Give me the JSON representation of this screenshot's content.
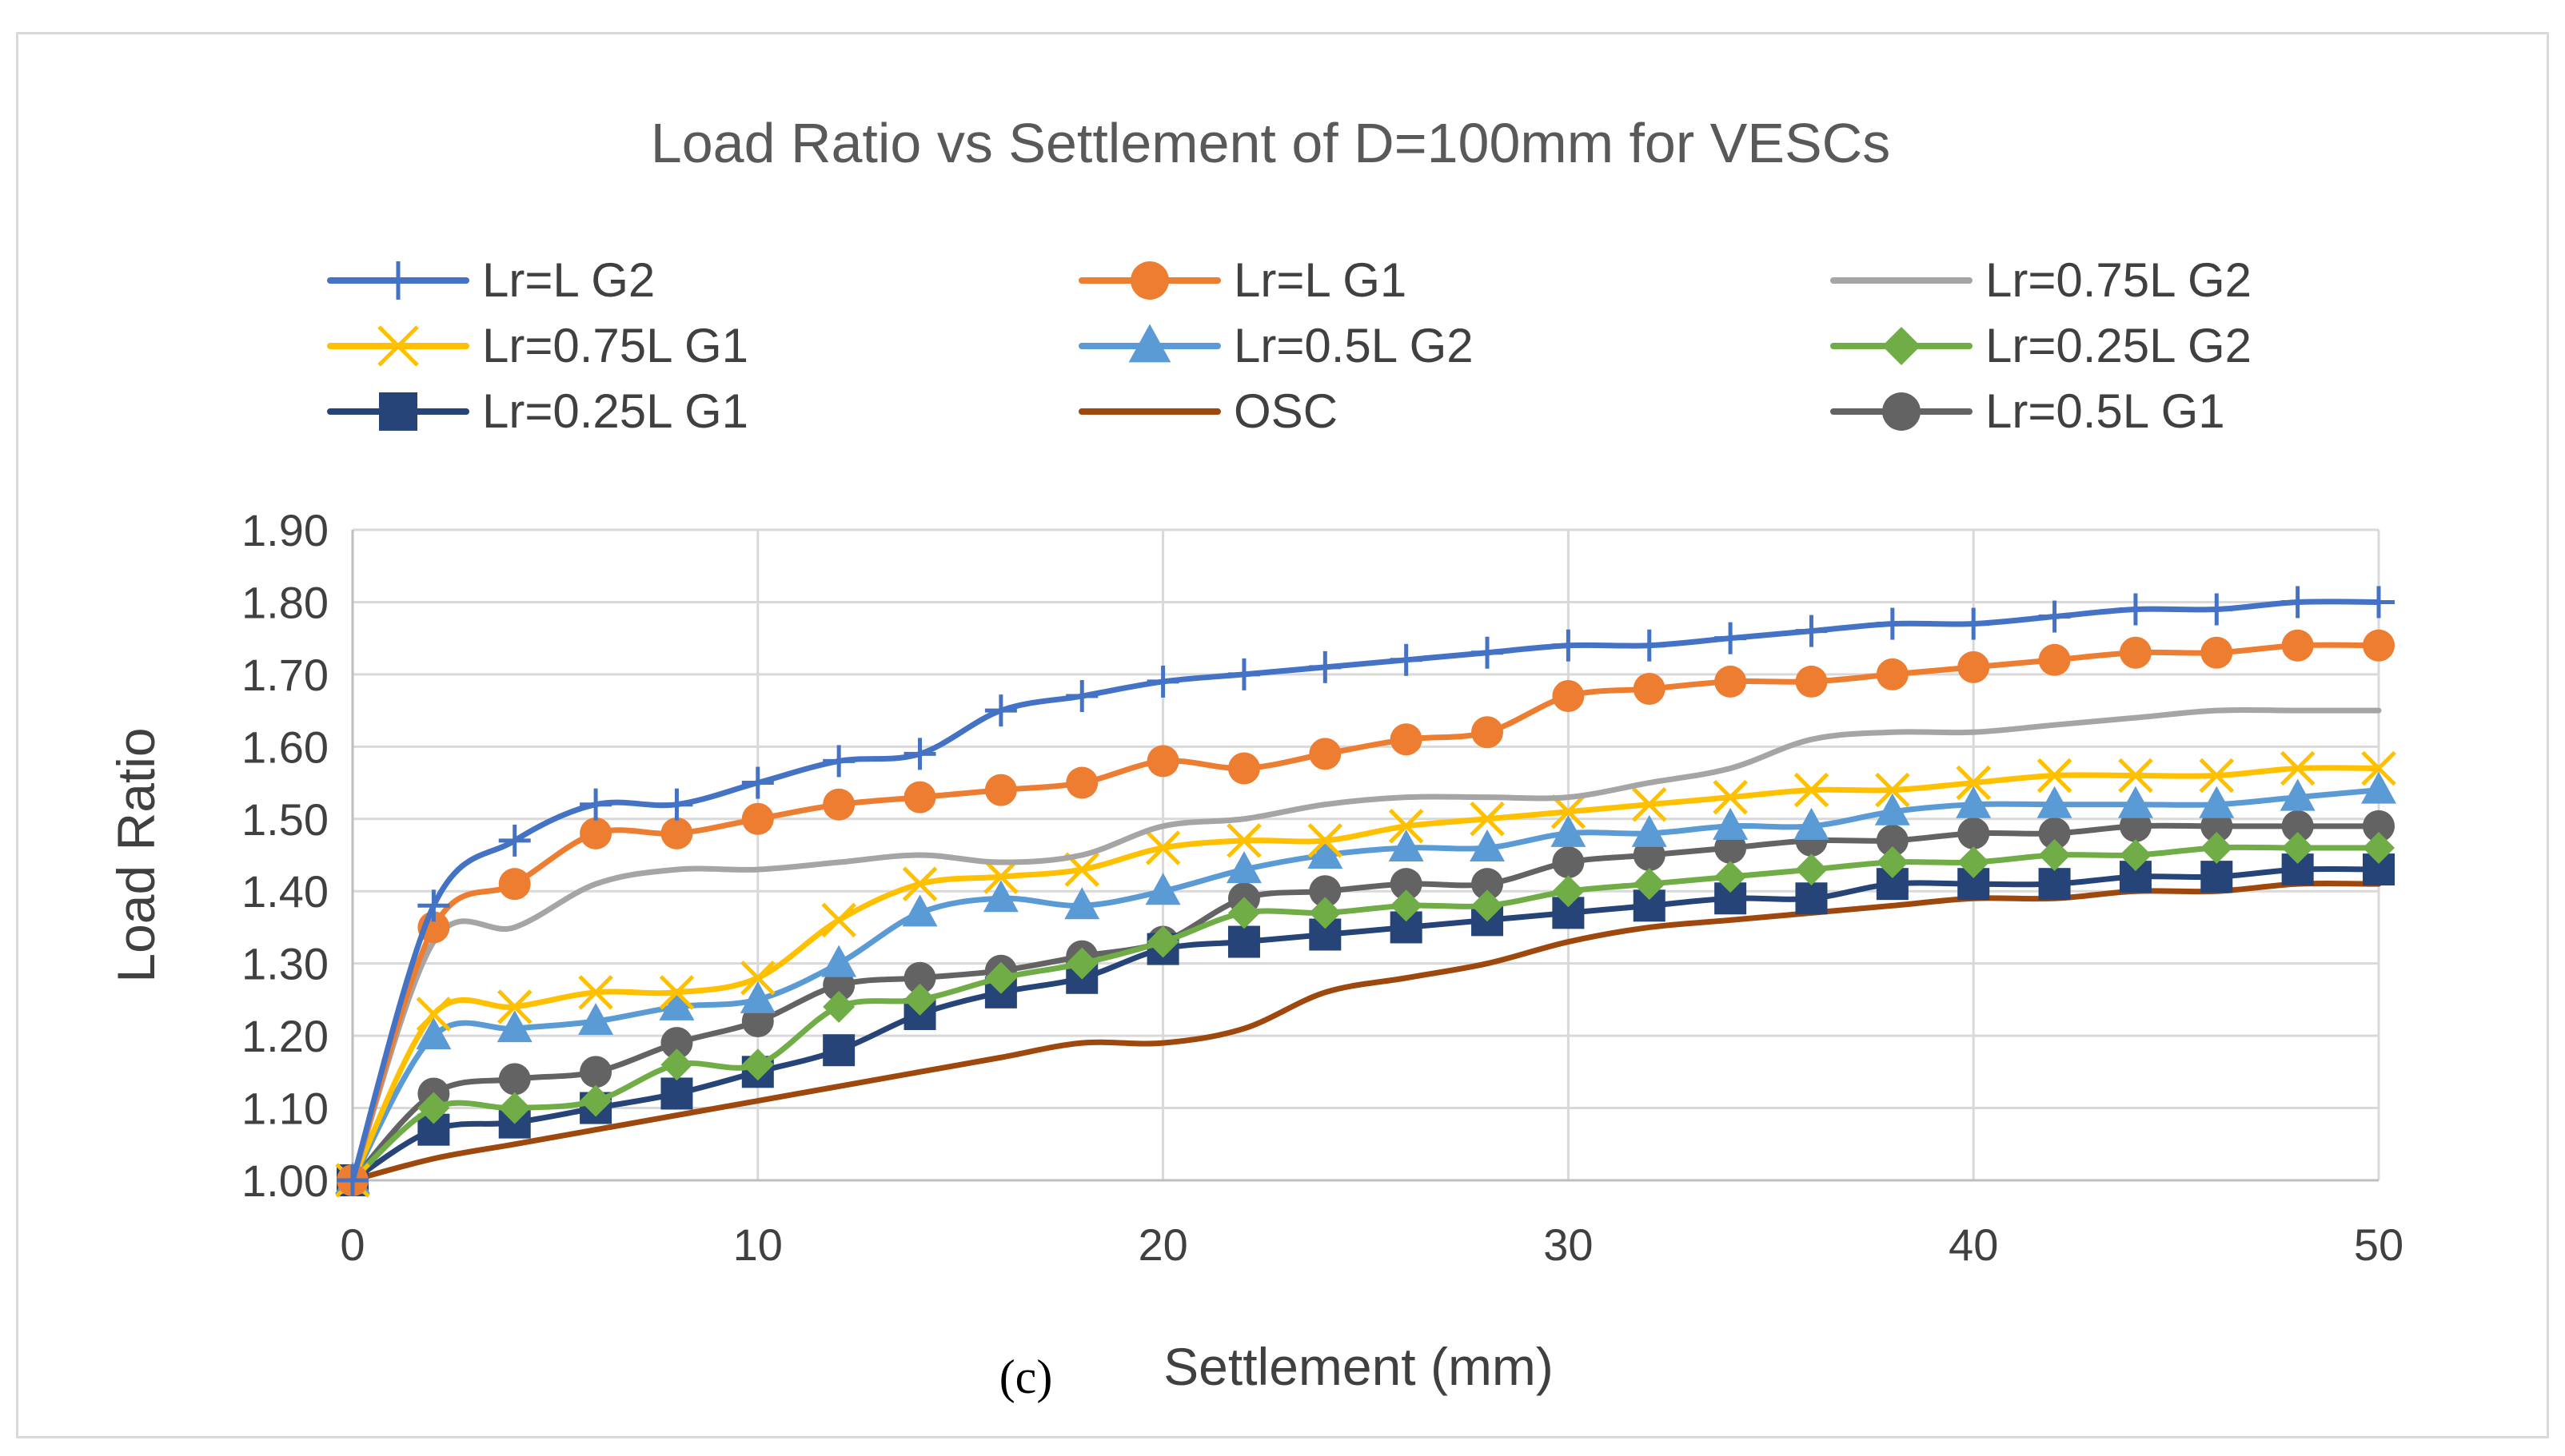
{
  "chart_data": {
    "type": "line",
    "title": "Load Ratio vs Settlement of D=100mm for VESCs",
    "xlabel": "Settlement (mm)",
    "ylabel": "Load Ratio",
    "caption": "(c)",
    "xlim": [
      0,
      50
    ],
    "ylim": [
      1.0,
      1.9
    ],
    "xticks": [
      "0",
      "10",
      "20",
      "30",
      "40",
      "50"
    ],
    "xtick_values": [
      0,
      10,
      20,
      30,
      40,
      50
    ],
    "yticks": [
      "1.00",
      "1.10",
      "1.20",
      "1.30",
      "1.40",
      "1.50",
      "1.60",
      "1.70",
      "1.80",
      "1.90"
    ],
    "ytick_values": [
      1.0,
      1.1,
      1.2,
      1.3,
      1.4,
      1.5,
      1.6,
      1.7,
      1.8,
      1.9
    ],
    "grid": true,
    "legend_position": "top",
    "x": [
      0,
      2,
      4,
      6,
      8,
      10,
      12,
      14,
      16,
      18,
      20,
      22,
      24,
      26,
      28,
      30,
      32,
      34,
      36,
      38,
      40,
      42,
      44,
      46,
      48,
      50
    ],
    "series": [
      {
        "name": "Lr=L G2",
        "color": "#4472C4",
        "marker": "plus",
        "values": [
          1.0,
          1.38,
          1.47,
          1.52,
          1.52,
          1.55,
          1.58,
          1.59,
          1.65,
          1.67,
          1.69,
          1.7,
          1.71,
          1.72,
          1.73,
          1.74,
          1.74,
          1.75,
          1.76,
          1.77,
          1.77,
          1.78,
          1.79,
          1.79,
          1.8,
          1.8
        ]
      },
      {
        "name": "Lr=L G1",
        "color": "#ED7D31",
        "marker": "circle",
        "values": [
          1.0,
          1.35,
          1.41,
          1.48,
          1.48,
          1.5,
          1.52,
          1.53,
          1.54,
          1.55,
          1.58,
          1.57,
          1.59,
          1.61,
          1.62,
          1.67,
          1.68,
          1.69,
          1.69,
          1.7,
          1.71,
          1.72,
          1.73,
          1.73,
          1.74,
          1.74
        ]
      },
      {
        "name": "Lr=0.75L G2",
        "color": "#A5A5A5",
        "marker": "none",
        "values": [
          1.0,
          1.33,
          1.35,
          1.41,
          1.43,
          1.43,
          1.44,
          1.45,
          1.44,
          1.45,
          1.49,
          1.5,
          1.52,
          1.53,
          1.53,
          1.53,
          1.55,
          1.57,
          1.61,
          1.62,
          1.62,
          1.63,
          1.64,
          1.65,
          1.65,
          1.65
        ]
      },
      {
        "name": "Lr=0.75L G1",
        "color": "#FFC000",
        "marker": "x",
        "values": [
          1.0,
          1.23,
          1.24,
          1.26,
          1.26,
          1.28,
          1.36,
          1.41,
          1.42,
          1.43,
          1.46,
          1.47,
          1.47,
          1.49,
          1.5,
          1.51,
          1.52,
          1.53,
          1.54,
          1.54,
          1.55,
          1.56,
          1.56,
          1.56,
          1.57,
          1.57
        ]
      },
      {
        "name": "Lr=0.5L G2",
        "color": "#5B9BD5",
        "marker": "triangle",
        "values": [
          1.0,
          1.2,
          1.21,
          1.22,
          1.24,
          1.25,
          1.3,
          1.37,
          1.39,
          1.38,
          1.4,
          1.43,
          1.45,
          1.46,
          1.46,
          1.48,
          1.48,
          1.49,
          1.49,
          1.51,
          1.52,
          1.52,
          1.52,
          1.52,
          1.53,
          1.54
        ]
      },
      {
        "name": "Lr=0.25L G2",
        "color": "#70AD47",
        "marker": "diamond",
        "values": [
          1.0,
          1.1,
          1.1,
          1.11,
          1.16,
          1.16,
          1.24,
          1.25,
          1.28,
          1.3,
          1.33,
          1.37,
          1.37,
          1.38,
          1.38,
          1.4,
          1.41,
          1.42,
          1.43,
          1.44,
          1.44,
          1.45,
          1.45,
          1.46,
          1.46,
          1.46
        ]
      },
      {
        "name": "Lr=0.25L G1",
        "color": "#264478",
        "marker": "square",
        "values": [
          1.0,
          1.07,
          1.08,
          1.1,
          1.12,
          1.15,
          1.18,
          1.23,
          1.26,
          1.28,
          1.32,
          1.33,
          1.34,
          1.35,
          1.36,
          1.37,
          1.38,
          1.39,
          1.39,
          1.41,
          1.41,
          1.41,
          1.42,
          1.42,
          1.43,
          1.43
        ]
      },
      {
        "name": "OSC",
        "color": "#9E480E",
        "marker": "none",
        "values": [
          1.0,
          1.03,
          1.05,
          1.07,
          1.09,
          1.11,
          1.13,
          1.15,
          1.17,
          1.19,
          1.19,
          1.21,
          1.26,
          1.28,
          1.3,
          1.33,
          1.35,
          1.36,
          1.37,
          1.38,
          1.39,
          1.39,
          1.4,
          1.4,
          1.41,
          1.41
        ]
      },
      {
        "name": "Lr=0.5L G1",
        "color": "#636363",
        "marker": "circle",
        "values": [
          1.0,
          1.12,
          1.14,
          1.15,
          1.19,
          1.22,
          1.27,
          1.28,
          1.29,
          1.31,
          1.33,
          1.39,
          1.4,
          1.41,
          1.41,
          1.44,
          1.45,
          1.46,
          1.47,
          1.47,
          1.48,
          1.48,
          1.49,
          1.49,
          1.49,
          1.49
        ]
      }
    ]
  }
}
